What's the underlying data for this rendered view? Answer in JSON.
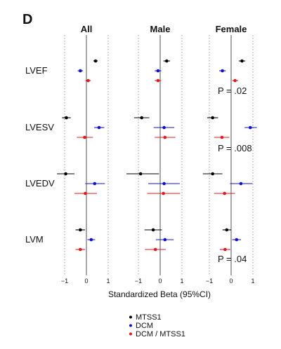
{
  "panel_label": "D",
  "chart_data": {
    "type": "forest",
    "xlabel": "Standardized Beta (95%CI)",
    "xlim": [
      -1.2,
      1.2
    ],
    "x_ticks": [
      -1,
      0,
      1
    ],
    "x_tick_labels": [
      "−1",
      "0",
      "1"
    ],
    "grid": "dotted vertical at -1 and 1, solid line at 0",
    "panels": [
      "All",
      "Male",
      "Female"
    ],
    "outcomes": [
      "LVEF",
      "LVESV",
      "LVEDV",
      "LVM"
    ],
    "series": [
      {
        "name": "MTSS1",
        "color": "#000000"
      },
      {
        "name": "DCM",
        "color": "#1010cc"
      },
      {
        "name": "DCM / MTSS1",
        "color": "#e0191e"
      }
    ],
    "estimates": {
      "All": {
        "LVEF": {
          "MTSS1": [
            0.42,
            0.32,
            0.52
          ],
          "DCM": [
            -0.28,
            -0.4,
            -0.16
          ],
          "DCM / MTSS1": [
            0.08,
            -0.04,
            0.2
          ]
        },
        "LVESV": {
          "MTSS1": [
            -0.92,
            -1.12,
            -0.72
          ],
          "DCM": [
            0.58,
            0.36,
            0.82
          ],
          "DCM / MTSS1": [
            -0.08,
            -0.44,
            0.3
          ]
        },
        "LVEDV": {
          "MTSS1": [
            -0.95,
            -1.35,
            -0.55
          ],
          "DCM": [
            0.38,
            -0.05,
            0.85
          ],
          "DCM / MTSS1": [
            -0.05,
            -0.55,
            0.48
          ]
        },
        "LVM": {
          "MTSS1": [
            -0.28,
            -0.5,
            -0.06
          ],
          "DCM": [
            0.22,
            0.05,
            0.4
          ],
          "DCM / MTSS1": [
            -0.28,
            -0.5,
            -0.06
          ]
        }
      },
      "Male": {
        "LVEF": {
          "MTSS1": [
            0.3,
            0.15,
            0.45
          ],
          "DCM": [
            -0.1,
            -0.25,
            0.05
          ],
          "DCM / MTSS1": [
            -0.1,
            -0.25,
            0.05
          ]
        },
        "LVESV": {
          "MTSS1": [
            -0.85,
            -1.2,
            -0.5
          ],
          "DCM": [
            0.18,
            -0.3,
            0.65
          ],
          "DCM / MTSS1": [
            0.22,
            -0.25,
            0.7
          ]
        },
        "LVEDV": {
          "MTSS1": [
            -0.9,
            -1.55,
            -0.05
          ],
          "DCM": [
            0.18,
            -0.55,
            0.9
          ],
          "DCM / MTSS1": [
            0.15,
            -0.6,
            0.92
          ]
        },
        "LVM": {
          "MTSS1": [
            -0.32,
            -0.72,
            0.08
          ],
          "DCM": [
            0.22,
            -0.2,
            0.62
          ],
          "DCM / MTSS1": [
            -0.22,
            -0.7,
            0.26
          ]
        }
      },
      "Female": {
        "LVEF": {
          "MTSS1": [
            0.5,
            0.35,
            0.65
          ],
          "DCM": [
            -0.4,
            -0.55,
            -0.25
          ],
          "DCM / MTSS1": [
            0.18,
            0.05,
            0.32
          ]
        },
        "LVESV": {
          "MTSS1": [
            -0.85,
            -1.1,
            -0.6
          ],
          "DCM": [
            0.88,
            0.62,
            1.18
          ],
          "DCM / MTSS1": [
            -0.42,
            -0.78,
            -0.08
          ]
        },
        "LVEDV": {
          "MTSS1": [
            -0.85,
            -1.3,
            -0.4
          ],
          "DCM": [
            0.45,
            -0.05,
            0.98
          ],
          "DCM / MTSS1": [
            -0.3,
            -0.78,
            0.18
          ]
        },
        "LVM": {
          "MTSS1": [
            -0.2,
            -0.4,
            0.0
          ],
          "DCM": [
            0.25,
            0.05,
            0.45
          ],
          "DCM / MTSS1": [
            -0.28,
            -0.52,
            -0.04
          ]
        }
      }
    },
    "annotations": [
      {
        "panel": "Female",
        "outcome": "LVEF",
        "text": "P = .02"
      },
      {
        "panel": "Female",
        "outcome": "LVESV",
        "text": "P = .008"
      },
      {
        "panel": "Female",
        "outcome": "LVM",
        "text": "P = .04"
      }
    ],
    "legend_position": "bottom-center"
  }
}
